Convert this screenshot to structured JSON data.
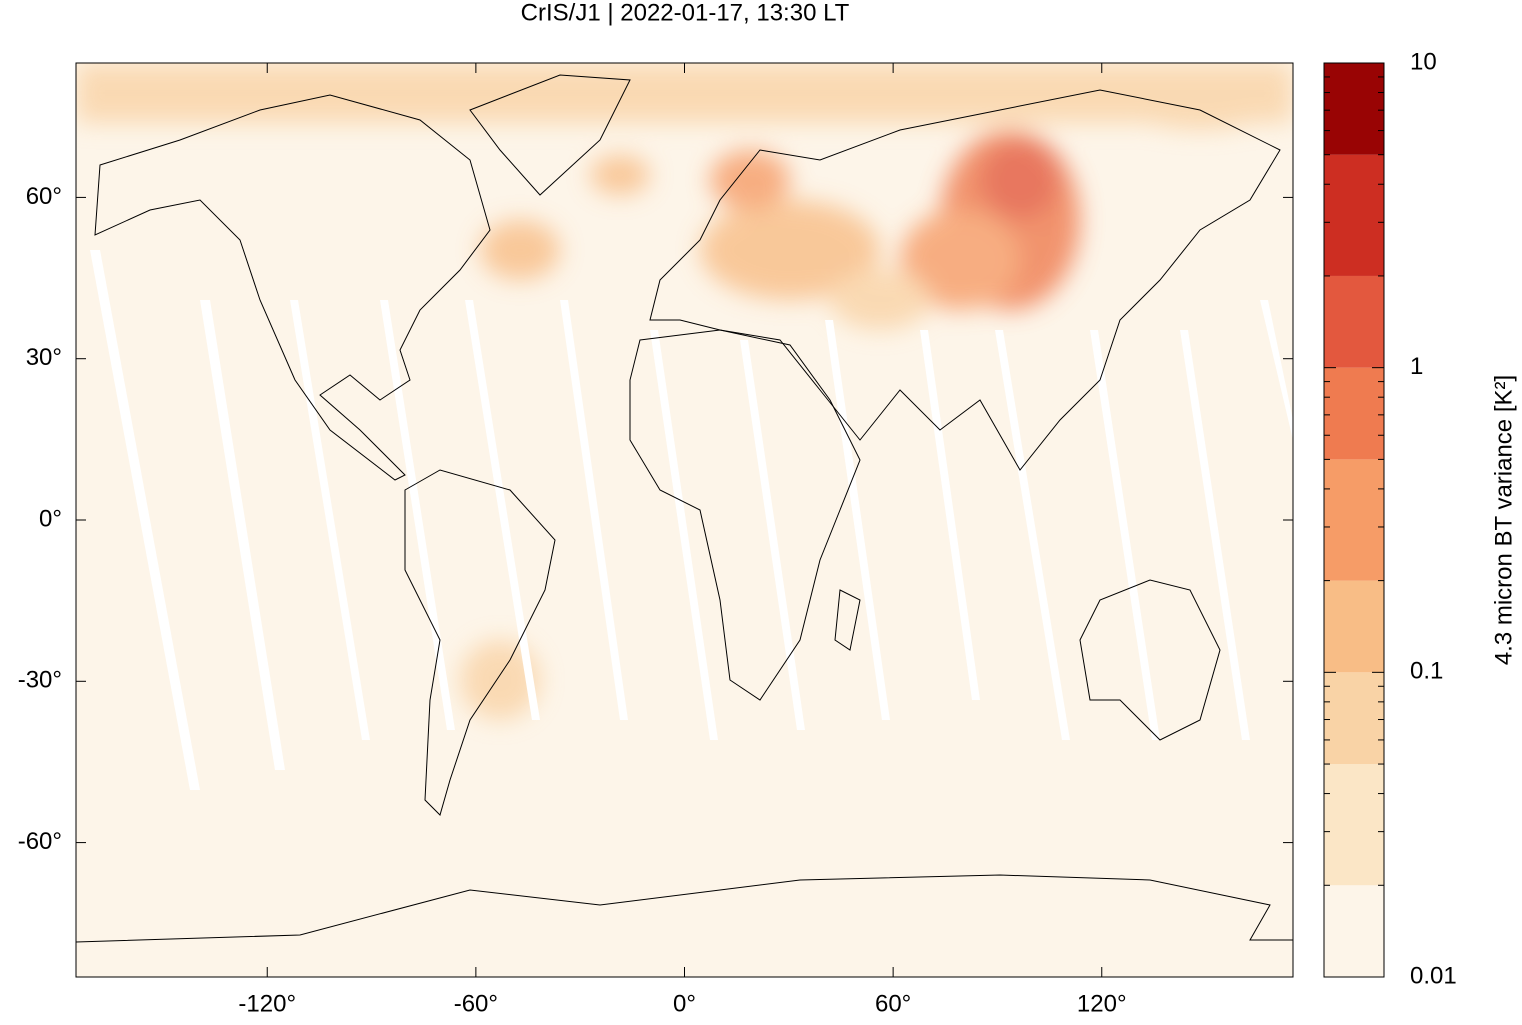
{
  "chart_data": {
    "type": "map",
    "title": "CrIS/J1 | 2022-01-17, 13:30 LT",
    "xlim": [
      -175,
      175
    ],
    "ylim": [
      -85,
      85
    ],
    "xticks": [
      {
        "value": -120,
        "label": "-120°"
      },
      {
        "value": -60,
        "label": "-60°"
      },
      {
        "value": 0,
        "label": "0°"
      },
      {
        "value": 60,
        "label": "60°"
      },
      {
        "value": 120,
        "label": "120°"
      }
    ],
    "yticks": [
      {
        "value": -60,
        "label": "-60°"
      },
      {
        "value": -30,
        "label": "-30°"
      },
      {
        "value": 0,
        "label": "0°"
      },
      {
        "value": 30,
        "label": "30°"
      },
      {
        "value": 60,
        "label": "60°"
      }
    ],
    "colorbar": {
      "label": "4.3 micron BT variance [K²]",
      "log": true,
      "lim": [
        0.01,
        10
      ],
      "levels": [
        0.01,
        0.02,
        0.05,
        0.1,
        0.2,
        0.5,
        1,
        2,
        5,
        10
      ],
      "colors": [
        "#fdf5e9",
        "#fbe6c6",
        "#f9d3a6",
        "#f8bd86",
        "#f69c67",
        "#ef7b50",
        "#e3583e",
        "#cd2e22",
        "#990404"
      ],
      "ticks": [
        0.01,
        0.1,
        1,
        10
      ],
      "minor_ticks": [
        0.02,
        0.03,
        0.04,
        0.05,
        0.06,
        0.07,
        0.08,
        0.09,
        0.2,
        0.3,
        0.4,
        0.5,
        0.6,
        0.7,
        0.8,
        0.9,
        2,
        3,
        4,
        5,
        6,
        7,
        8,
        9
      ]
    }
  }
}
